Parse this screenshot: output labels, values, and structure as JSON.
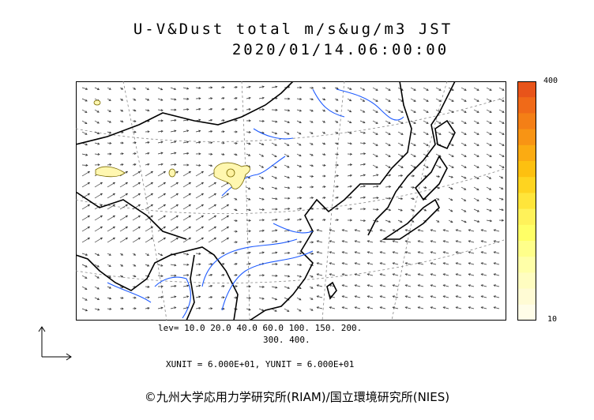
{
  "title": {
    "line1": "U-V&Dust total m/s&ug/m3 JST",
    "line2": "2020/01/14.06:00:00"
  },
  "colorbar": {
    "max_label": "400",
    "min_label": "10",
    "colors": [
      "#e8541a",
      "#f06a18",
      "#f47f16",
      "#f89414",
      "#fbab12",
      "#fdc010",
      "#fed420",
      "#ffe53a",
      "#fff25a",
      "#ffff66",
      "#ffff8a",
      "#ffffa8",
      "#fffdc0",
      "#fffbd4",
      "#fffde8"
    ]
  },
  "levels": {
    "line1": "lev= 10.0 20.0 40.0 60.0 100. 150. 200.",
    "line2": "300. 400."
  },
  "units": "XUNIT = 6.000E+01, YUNIT = 6.000E+01",
  "credit": "©九州大学応用力学研究所(RIAM)/国立環境研究所(NIES)",
  "map": {
    "coast_color": "#000000",
    "river_color": "#1e5bff",
    "dust_fill": "#fff7b0",
    "dust_outline": "#7a6a00",
    "grid_color": "#888888"
  }
}
